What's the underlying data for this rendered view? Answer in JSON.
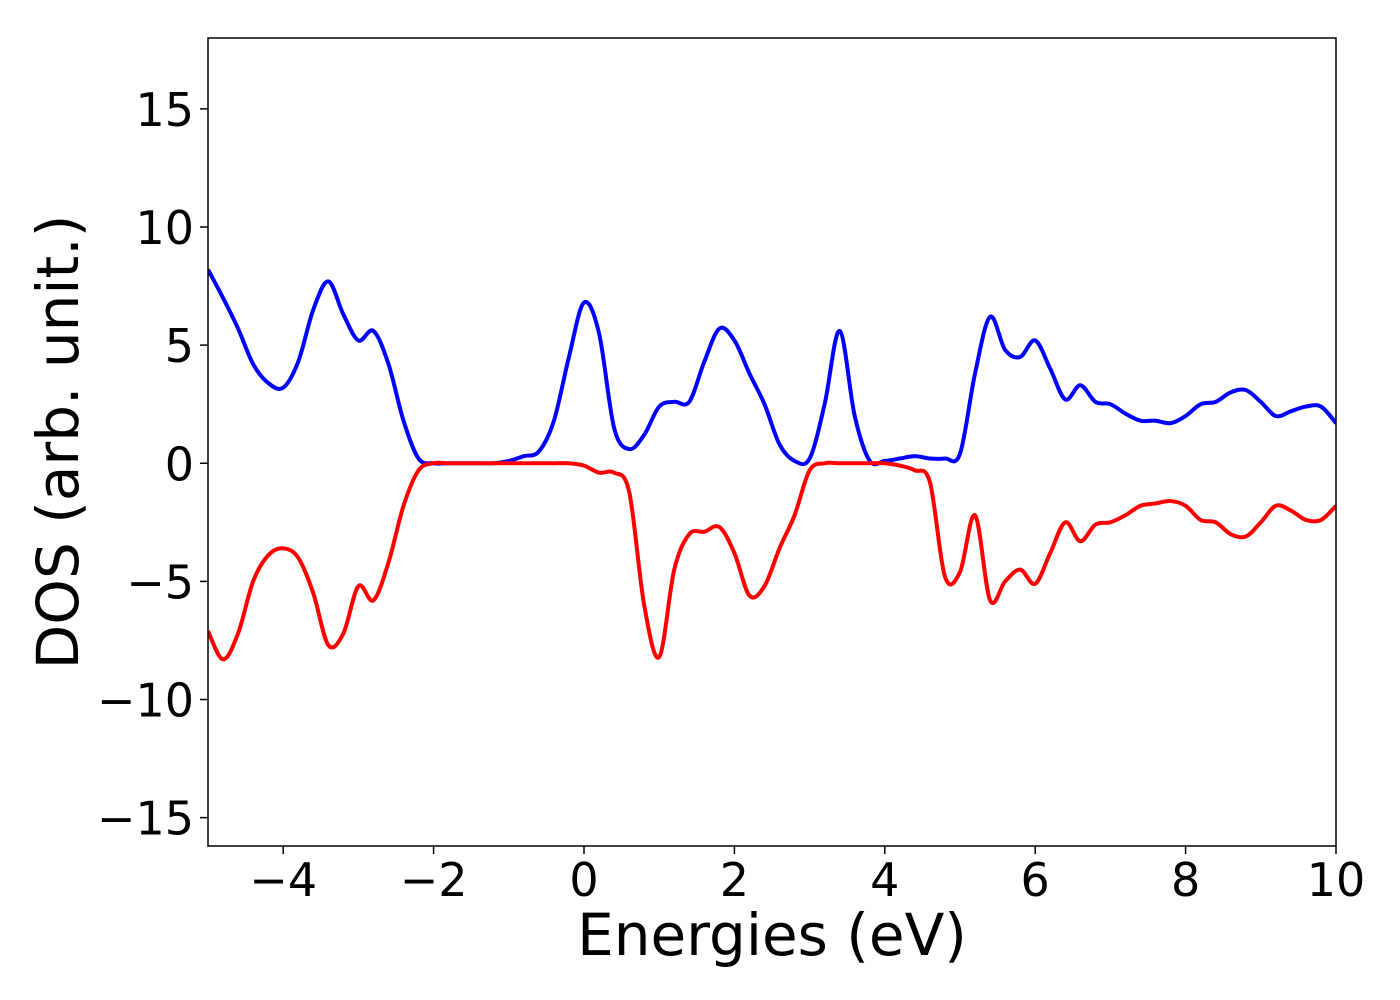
{
  "chart_data": {
    "type": "line",
    "xlabel": "Energies (eV)",
    "ylabel": "DOS (arb. unit.)",
    "x": [
      -5.0,
      -4.8,
      -4.6,
      -4.4,
      -4.2,
      -4.0,
      -3.8,
      -3.6,
      -3.4,
      -3.2,
      -3.0,
      -2.8,
      -2.6,
      -2.4,
      -2.2,
      -2.0,
      -1.8,
      -1.6,
      -1.4,
      -1.2,
      -1.0,
      -0.8,
      -0.6,
      -0.4,
      -0.2,
      0.0,
      0.2,
      0.4,
      0.6,
      0.8,
      1.0,
      1.2,
      1.4,
      1.6,
      1.8,
      2.0,
      2.2,
      2.4,
      2.6,
      2.8,
      3.0,
      3.2,
      3.4,
      3.6,
      3.8,
      4.0,
      4.2,
      4.4,
      4.6,
      4.8,
      5.0,
      5.2,
      5.4,
      5.6,
      5.8,
      6.0,
      6.2,
      6.4,
      6.6,
      6.8,
      7.0,
      7.2,
      7.4,
      7.6,
      7.8,
      8.0,
      8.2,
      8.4,
      8.6,
      8.8,
      9.0,
      9.2,
      9.4,
      9.6,
      9.8,
      10.0
    ],
    "series": [
      {
        "color": "#0000ff",
        "values": [
          8.2,
          7.0,
          5.7,
          4.2,
          3.4,
          3.2,
          4.3,
          6.5,
          7.7,
          6.3,
          5.2,
          5.6,
          4.2,
          1.8,
          0.2,
          0,
          0,
          0,
          0,
          0,
          0.1,
          0.3,
          0.5,
          1.8,
          4.5,
          6.8,
          5.5,
          1.5,
          0.6,
          1.2,
          2.4,
          2.6,
          2.6,
          4.3,
          5.7,
          5.2,
          3.8,
          2.5,
          0.8,
          0.1,
          0.2,
          2.5,
          5.6,
          2.0,
          0.1,
          0.1,
          0.2,
          0.3,
          0.2,
          0.2,
          0.4,
          3.8,
          6.2,
          4.8,
          4.5,
          5.2,
          4.0,
          2.7,
          3.3,
          2.6,
          2.5,
          2.1,
          1.8,
          1.8,
          1.7,
          2.0,
          2.5,
          2.6,
          3.0,
          3.1,
          2.6,
          2.0,
          2.2,
          2.4,
          2.4,
          1.7
        ]
      },
      {
        "color": "#ff0000",
        "values": [
          -7.1,
          -8.3,
          -7.2,
          -5.0,
          -3.9,
          -3.6,
          -4.0,
          -5.5,
          -7.7,
          -7.2,
          -5.2,
          -5.8,
          -4.2,
          -1.8,
          -0.3,
          0,
          0,
          0,
          0,
          0,
          0,
          0,
          0,
          0,
          0,
          -0.1,
          -0.4,
          -0.4,
          -1.2,
          -6.0,
          -8.2,
          -4.5,
          -3.0,
          -2.9,
          -2.7,
          -3.8,
          -5.6,
          -5.2,
          -3.6,
          -2.2,
          -0.3,
          0,
          0,
          0,
          0,
          0,
          -0.1,
          -0.3,
          -0.8,
          -4.8,
          -4.6,
          -2.2,
          -5.8,
          -5.0,
          -4.5,
          -5.1,
          -3.8,
          -2.5,
          -3.3,
          -2.6,
          -2.5,
          -2.2,
          -1.8,
          -1.7,
          -1.6,
          -1.8,
          -2.4,
          -2.5,
          -3.0,
          -3.1,
          -2.5,
          -1.8,
          -2.0,
          -2.4,
          -2.4,
          -1.8
        ]
      }
    ],
    "xlim": [
      -5,
      10
    ],
    "ylim": [
      -16.2,
      18
    ],
    "xticks": [
      {
        "value": -4,
        "label": "−4"
      },
      {
        "value": -2,
        "label": "−2"
      },
      0,
      2,
      4,
      6,
      8,
      10
    ],
    "yticks": [
      {
        "value": -15,
        "label": "−15"
      },
      {
        "value": -10,
        "label": "−10"
      },
      {
        "value": -5,
        "label": "−5"
      },
      0,
      5,
      10,
      15
    ],
    "grid": false
  }
}
